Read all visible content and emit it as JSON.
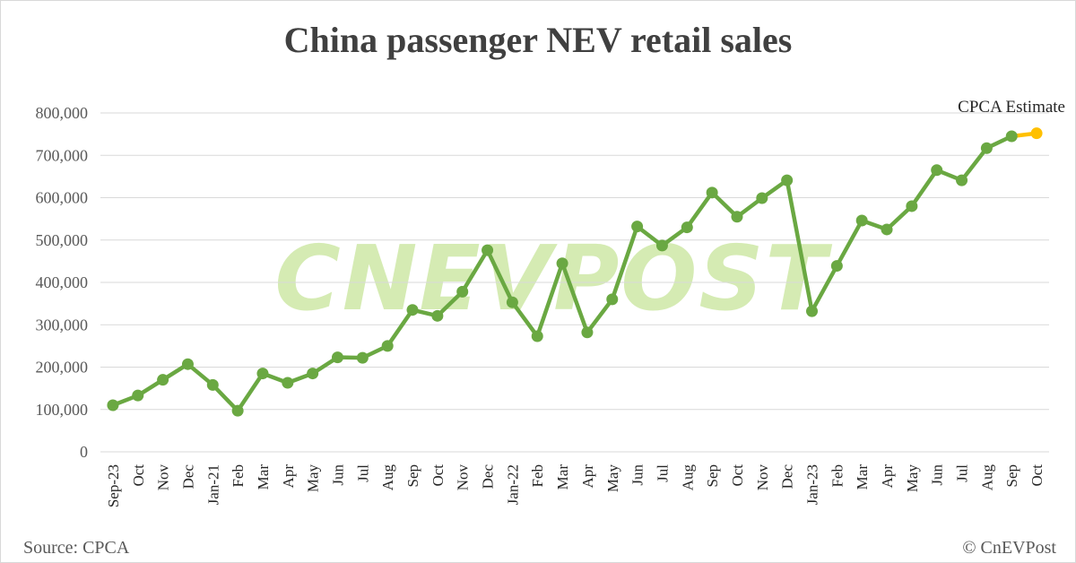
{
  "footer": {
    "source": "Source: CPCA",
    "copyright": "© CnEVPost"
  },
  "watermark": "CNEVPOST",
  "colors": {
    "series": "#6aa842",
    "estimate": "#ffc000",
    "grid": "#d9d9d9",
    "watermark": "#c7e59a"
  },
  "chart_data": {
    "type": "line",
    "title": "China passenger NEV retail sales",
    "xlabel": "",
    "ylabel": "",
    "ylim": [
      0,
      800000
    ],
    "yticks": [
      "0",
      "100,000",
      "200,000",
      "300,000",
      "400,000",
      "500,000",
      "600,000",
      "700,000",
      "800,000"
    ],
    "grid": true,
    "categories": [
      "Sep-23",
      "Oct",
      "Nov",
      "Dec",
      "Jan-21",
      "Feb",
      "Mar",
      "Apr",
      "May",
      "Jun",
      "Jul",
      "Aug",
      "Sep",
      "Oct",
      "Nov",
      "Dec",
      "Jan-22",
      "Feb",
      "Mar",
      "Apr",
      "May",
      "Jun",
      "Jul",
      "Aug",
      "Sep",
      "Oct",
      "Nov",
      "Dec",
      "Jan-23",
      "Feb",
      "Mar",
      "Apr",
      "May",
      "Jun",
      "Jul",
      "Aug",
      "Sep",
      "Oct"
    ],
    "series": [
      {
        "values": [
          110000,
          133000,
          170000,
          207000,
          158000,
          97000,
          185000,
          163000,
          185000,
          223000,
          222000,
          250000,
          335000,
          321000,
          378000,
          476000,
          353000,
          273000,
          445000,
          282000,
          360000,
          532000,
          487000,
          530000,
          612000,
          555000,
          599000,
          641000,
          332000,
          439000,
          546000,
          525000,
          580000,
          665000,
          641000,
          717000,
          745000,
          null
        ]
      },
      {
        "values": [
          null,
          null,
          null,
          null,
          null,
          null,
          null,
          null,
          null,
          null,
          null,
          null,
          null,
          null,
          null,
          null,
          null,
          null,
          null,
          null,
          null,
          null,
          null,
          null,
          null,
          null,
          null,
          null,
          null,
          null,
          null,
          null,
          null,
          null,
          null,
          null,
          745000,
          752000
        ]
      }
    ],
    "annotations": [
      {
        "text": "CPCA Estimate"
      }
    ]
  }
}
